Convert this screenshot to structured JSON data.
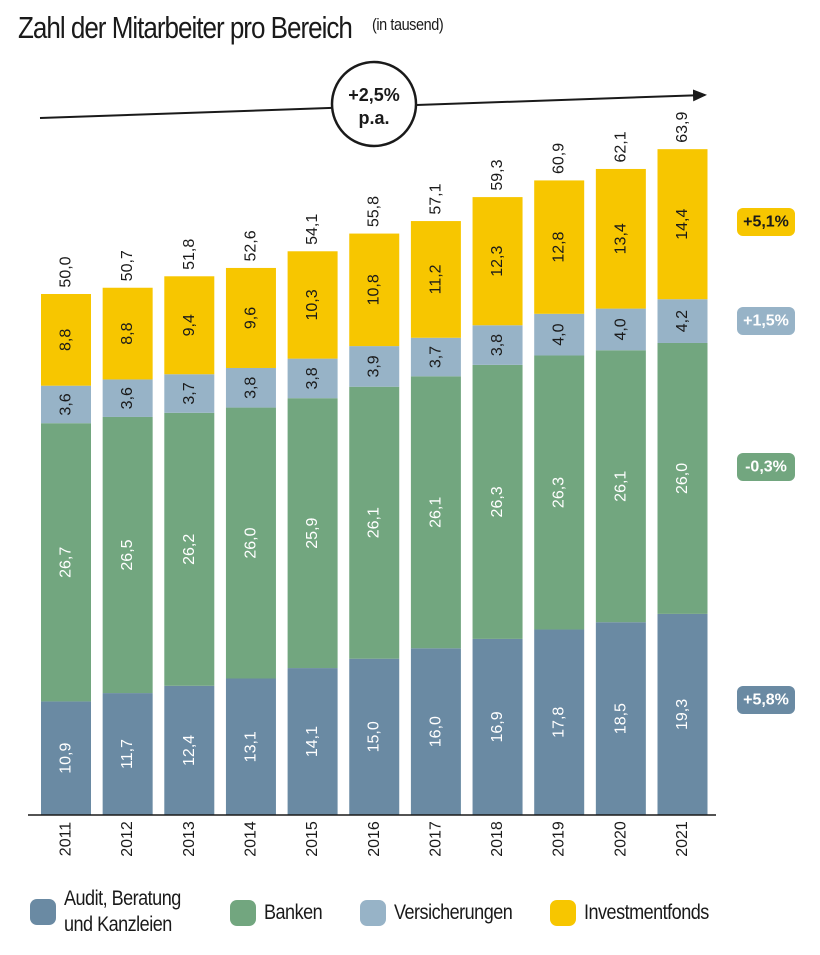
{
  "chart_data": {
    "type": "bar",
    "stacked": true,
    "title": "Zahl der Mitarbeiter pro Bereich",
    "unit": "(in tausend)",
    "categories": [
      "2011",
      "2012",
      "2013",
      "2014",
      "2015",
      "2016",
      "2017",
      "2018",
      "2019",
      "2020",
      "2021"
    ],
    "series": [
      {
        "name": "Audit, Beratung und Kanzleien",
        "color": "#6a8aa3",
        "values": [
          10.9,
          11.7,
          12.4,
          13.1,
          14.1,
          15.0,
          16.0,
          16.9,
          17.8,
          18.5,
          19.3
        ],
        "labels": [
          "10,9",
          "11,7",
          "12,4",
          "13,1",
          "14,1",
          "15,0",
          "16,0",
          "16,9",
          "17,8",
          "18,5",
          "19,3"
        ],
        "growth": "+5,8%"
      },
      {
        "name": "Banken",
        "color": "#72a67f",
        "values": [
          26.7,
          26.5,
          26.2,
          26.0,
          25.9,
          26.1,
          26.1,
          26.3,
          26.3,
          26.1,
          26.0
        ],
        "labels": [
          "26,7",
          "26,5",
          "26,2",
          "26,0",
          "25,9",
          "26,1",
          "26,1",
          "26,3",
          "26,3",
          "26,1",
          "26,0"
        ],
        "growth": "-0,3%"
      },
      {
        "name": "Versicherungen",
        "color": "#97b3c7",
        "values": [
          3.6,
          3.6,
          3.7,
          3.8,
          3.8,
          3.9,
          3.7,
          3.8,
          4.0,
          4.0,
          4.2
        ],
        "labels": [
          "3,6",
          "3,6",
          "3,7",
          "3,8",
          "3,8",
          "3,9",
          "3,7",
          "3,8",
          "4,0",
          "4,0",
          "4,2"
        ],
        "growth": "+1,5%"
      },
      {
        "name": "Investmentfonds",
        "color": "#f7c600",
        "values": [
          8.8,
          8.8,
          9.4,
          9.6,
          10.3,
          10.8,
          11.2,
          12.3,
          12.8,
          13.4,
          14.4
        ],
        "labels": [
          "8,8",
          "8,8",
          "9,4",
          "9,6",
          "10,3",
          "10,8",
          "11,2",
          "12,3",
          "12,8",
          "13,4",
          "14,4"
        ],
        "growth": "+5,1%"
      }
    ],
    "totals": [
      50.0,
      50.7,
      51.8,
      52.6,
      54.1,
      55.8,
      57.1,
      59.3,
      60.9,
      62.1,
      63.9
    ],
    "total_labels": [
      "50,0",
      "50,7",
      "51,8",
      "52,6",
      "54,1",
      "55,8",
      "57,1",
      "59,3",
      "60,9",
      "62,1",
      "63,9"
    ],
    "trend": {
      "line1": "+2,5%",
      "line2": "p.a."
    },
    "ylim": [
      0,
      64
    ],
    "legend": [
      {
        "text": "Audit, Beratung und Kanzleien",
        "color": "#6a8aa3"
      },
      {
        "text": "Banken",
        "color": "#72a67f"
      },
      {
        "text": "Versicherungen",
        "color": "#97b3c7"
      },
      {
        "text": "Investmentfonds",
        "color": "#f7c600"
      }
    ]
  }
}
